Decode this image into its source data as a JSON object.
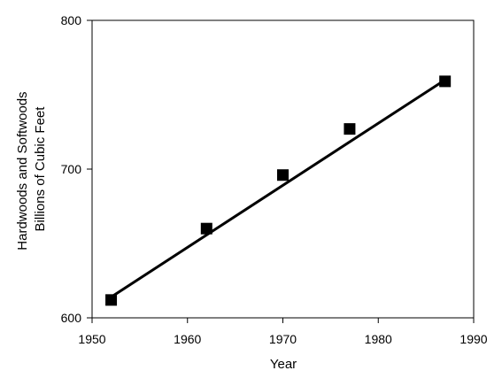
{
  "chart_data": {
    "type": "scatter",
    "title": "",
    "xlabel": "Year",
    "ylabel_lines": [
      "Hardwoods and Softwoods",
      "Billions of Cubic Feet"
    ],
    "xlim": [
      1950,
      1990
    ],
    "ylim": [
      600,
      800
    ],
    "xticks": [
      1950,
      1960,
      1970,
      1980,
      1990
    ],
    "yticks": [
      600,
      700,
      800
    ],
    "grid": false,
    "legend": "none",
    "marker": "square",
    "color": "#000000",
    "points": [
      {
        "x": 1952,
        "y": 612
      },
      {
        "x": 1962,
        "y": 660
      },
      {
        "x": 1970,
        "y": 696
      },
      {
        "x": 1977,
        "y": 727
      },
      {
        "x": 1987,
        "y": 759
      }
    ],
    "trendline": {
      "x": [
        1952,
        1987
      ],
      "y": [
        614,
        760
      ]
    }
  }
}
